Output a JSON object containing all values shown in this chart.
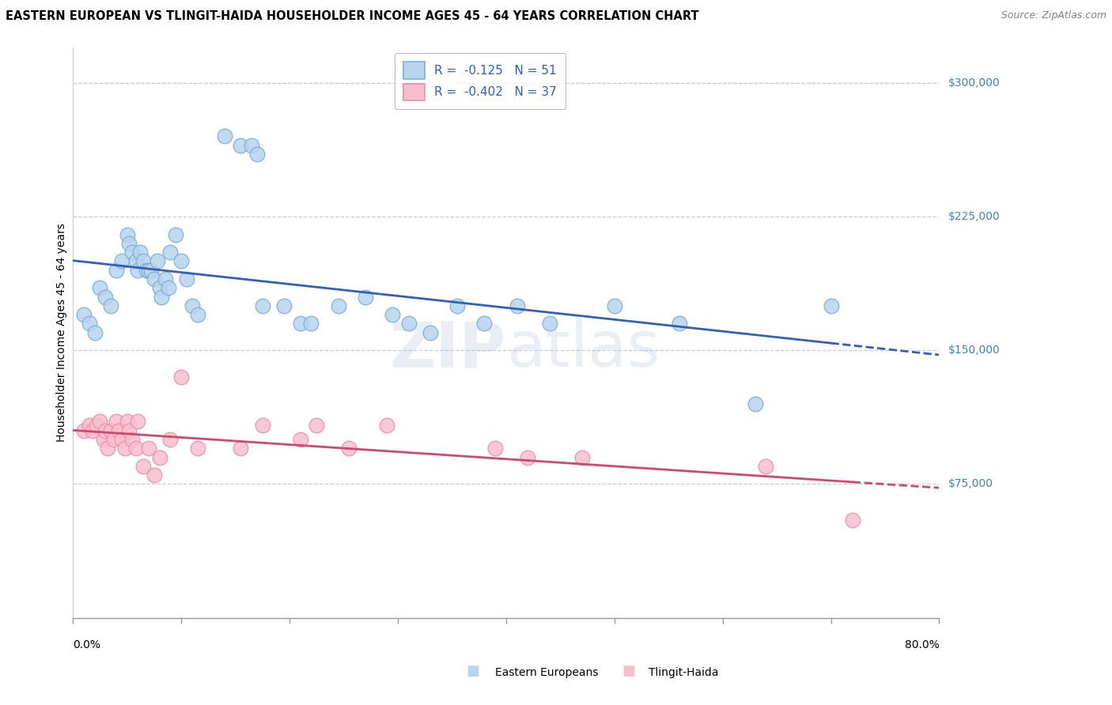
{
  "title": "EASTERN EUROPEAN VS TLINGIT-HAIDA HOUSEHOLDER INCOME AGES 45 - 64 YEARS CORRELATION CHART",
  "source": "Source: ZipAtlas.com",
  "ylabel": "Householder Income Ages 45 - 64 years",
  "y_tick_labels": [
    "$75,000",
    "$150,000",
    "$225,000",
    "$300,000"
  ],
  "y_tick_values": [
    75000,
    150000,
    225000,
    300000
  ],
  "ylim": [
    0,
    320000
  ],
  "xlim": [
    0.0,
    0.8
  ],
  "legend_line1": "R =  -0.125   N = 51",
  "legend_line2": "R =  -0.402   N = 37",
  "legend_labels": [
    "Eastern Europeans",
    "Tlingit-Haida"
  ],
  "blue_fill": "#b8d4ee",
  "blue_edge": "#7bafd4",
  "pink_fill": "#f9bece",
  "pink_edge": "#e890a8",
  "blue_line": "#3060b8",
  "pink_line": "#d04870",
  "tick_color": "#4080c0",
  "legend_text_color": "#3060b8",
  "blue_x": [
    0.01,
    0.015,
    0.02,
    0.025,
    0.03,
    0.035,
    0.04,
    0.045,
    0.05,
    0.052,
    0.055,
    0.058,
    0.06,
    0.062,
    0.065,
    0.068,
    0.07,
    0.072,
    0.075,
    0.078,
    0.08,
    0.082,
    0.085,
    0.088,
    0.09,
    0.095,
    0.1,
    0.105,
    0.11,
    0.115,
    0.14,
    0.155,
    0.165,
    0.17,
    0.175,
    0.195,
    0.21,
    0.22,
    0.245,
    0.27,
    0.295,
    0.31,
    0.33,
    0.355,
    0.38,
    0.41,
    0.44,
    0.5,
    0.56,
    0.63,
    0.7
  ],
  "blue_y": [
    170000,
    165000,
    160000,
    185000,
    180000,
    175000,
    195000,
    200000,
    215000,
    210000,
    205000,
    200000,
    195000,
    205000,
    200000,
    195000,
    195000,
    195000,
    190000,
    200000,
    185000,
    180000,
    190000,
    185000,
    205000,
    215000,
    200000,
    190000,
    175000,
    170000,
    270000,
    265000,
    265000,
    260000,
    175000,
    175000,
    165000,
    165000,
    175000,
    180000,
    170000,
    165000,
    160000,
    175000,
    165000,
    175000,
    165000,
    175000,
    165000,
    120000,
    175000
  ],
  "pink_x": [
    0.01,
    0.015,
    0.018,
    0.022,
    0.025,
    0.028,
    0.03,
    0.032,
    0.035,
    0.038,
    0.04,
    0.042,
    0.045,
    0.048,
    0.05,
    0.052,
    0.055,
    0.058,
    0.06,
    0.065,
    0.07,
    0.075,
    0.08,
    0.09,
    0.1,
    0.115,
    0.155,
    0.175,
    0.21,
    0.225,
    0.255,
    0.29,
    0.39,
    0.42,
    0.47,
    0.64,
    0.72
  ],
  "pink_y": [
    105000,
    108000,
    105000,
    108000,
    110000,
    100000,
    105000,
    95000,
    105000,
    100000,
    110000,
    105000,
    100000,
    95000,
    110000,
    105000,
    100000,
    95000,
    110000,
    85000,
    95000,
    80000,
    90000,
    100000,
    135000,
    95000,
    95000,
    108000,
    100000,
    108000,
    95000,
    108000,
    95000,
    90000,
    90000,
    85000,
    55000
  ],
  "watermark_zip": "ZIP",
  "watermark_atlas": "atlas",
  "bg_color": "#ffffff",
  "grid_color": "#cccccc",
  "title_fontsize": 10.5,
  "tick_fontsize": 10,
  "legend_fontsize": 11,
  "x_tick_positions": [
    0.0,
    0.1,
    0.2,
    0.3,
    0.4,
    0.5,
    0.6,
    0.7,
    0.8
  ]
}
